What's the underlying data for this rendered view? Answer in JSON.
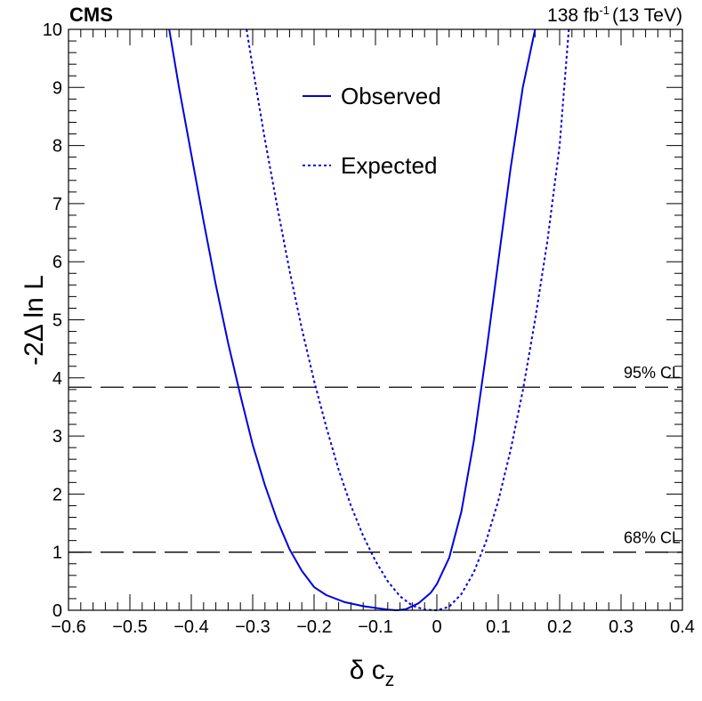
{
  "header": {
    "experiment": "CMS",
    "lumi_value": "138 fb",
    "lumi_exp": "-1",
    "energy": "(13 TeV)"
  },
  "legend": {
    "observed": "Observed",
    "expected": "Expected"
  },
  "chart_data": {
    "type": "line",
    "title": "",
    "xlabel_symbol": "δ c",
    "xlabel_sub": "z",
    "ylabel": "-2Δ ln L",
    "xlim": [
      -0.6,
      0.4
    ],
    "ylim": [
      0,
      10
    ],
    "x_major_ticks": [
      -0.6,
      -0.5,
      -0.4,
      -0.3,
      -0.2,
      -0.1,
      0,
      0.1,
      0.2,
      0.3,
      0.4
    ],
    "x_tick_labels": [
      "−0.6",
      "−0.5",
      "−0.4",
      "−0.3",
      "−0.2",
      "−0.1",
      "0",
      "0.1",
      "0.2",
      "0.3",
      "0.4"
    ],
    "y_major_ticks": [
      0,
      1,
      2,
      3,
      4,
      5,
      6,
      7,
      8,
      9,
      10
    ],
    "y_tick_labels": [
      "0",
      "1",
      "2",
      "3",
      "4",
      "5",
      "6",
      "7",
      "8",
      "9",
      "10"
    ],
    "grid": false,
    "colors": {
      "line": "#0000dd",
      "threshold": "#000000"
    },
    "series": [
      {
        "name": "Observed",
        "style": "solid",
        "x": [
          -0.436,
          -0.42,
          -0.4,
          -0.38,
          -0.36,
          -0.34,
          -0.32,
          -0.3,
          -0.28,
          -0.26,
          -0.24,
          -0.22,
          -0.2,
          -0.18,
          -0.15,
          -0.12,
          -0.1,
          -0.08,
          -0.065,
          -0.05,
          -0.03,
          -0.01,
          0.0,
          0.02,
          0.04,
          0.06,
          0.08,
          0.1,
          0.12,
          0.14,
          0.16
        ],
        "y": [
          10.0,
          9.0,
          7.85,
          6.7,
          5.6,
          4.6,
          3.7,
          2.85,
          2.15,
          1.55,
          1.05,
          0.68,
          0.4,
          0.26,
          0.14,
          0.07,
          0.04,
          0.01,
          0.0,
          0.02,
          0.12,
          0.3,
          0.45,
          0.9,
          1.7,
          2.9,
          4.4,
          6.0,
          7.6,
          9.0,
          10.0
        ]
      },
      {
        "name": "Expected",
        "style": "dotted",
        "x": [
          -0.31,
          -0.3,
          -0.28,
          -0.26,
          -0.24,
          -0.22,
          -0.2,
          -0.18,
          -0.16,
          -0.14,
          -0.12,
          -0.1,
          -0.08,
          -0.06,
          -0.04,
          -0.02,
          0.0,
          0.02,
          0.04,
          0.06,
          0.08,
          0.1,
          0.12,
          0.14,
          0.16,
          0.18,
          0.2,
          0.215
        ],
        "y": [
          10.0,
          9.35,
          8.1,
          6.95,
          5.85,
          4.85,
          3.95,
          3.15,
          2.42,
          1.8,
          1.28,
          0.85,
          0.5,
          0.24,
          0.08,
          0.01,
          0.0,
          0.06,
          0.28,
          0.65,
          1.18,
          1.88,
          2.75,
          3.78,
          5.0,
          6.35,
          8.0,
          10.0
        ]
      }
    ],
    "thresholds": [
      {
        "y": 3.84,
        "label": "95% CL"
      },
      {
        "y": 1.0,
        "label": "68% CL"
      }
    ]
  }
}
